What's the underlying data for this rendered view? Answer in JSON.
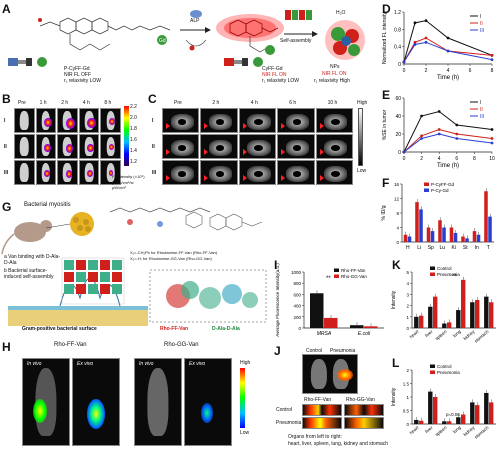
{
  "labels": {
    "A": "A",
    "B": "B",
    "C": "C",
    "D": "D",
    "E": "E",
    "F": "F",
    "G": "G",
    "H": "H",
    "I": "I",
    "J": "J",
    "K": "K",
    "L": "L"
  },
  "panelA": {
    "alp": "ALP",
    "self_assembly": "Self-assembly",
    "water": "H₂O",
    "probe1_name": "P-CyFF-Gd",
    "probe1_fl": "NIR FL OFF",
    "probe1_r": "r₁ relaxivity LOW",
    "probe2_name": "CyFF-Gd",
    "probe2_fl": "NIR FL ON",
    "probe2_r": "r₁ relaxivity LOW",
    "probe3_name": "NPs",
    "probe3_fl": "NIR FL ON",
    "probe3_r": "r₁ relaxivity High"
  },
  "panelB": {
    "cols": [
      "Pre",
      "1 h",
      "2 h",
      "4 h",
      "8 h"
    ],
    "rows": [
      "I",
      "II",
      "III"
    ],
    "scale_ticks": [
      "2.2",
      "2.0",
      "1.8",
      "1.6",
      "1.4",
      "1.2"
    ],
    "scale_unit": "FL intensity (×10⁹)",
    "scale_unit2": "p/sec/cm²/sr μW/cm²"
  },
  "panelC": {
    "cols": [
      "Pre",
      "2 h",
      "4 h",
      "6 h",
      "10 h"
    ],
    "rows": [
      "I",
      "II",
      "III"
    ],
    "high": "High",
    "low": "Low"
  },
  "panelD": {
    "ylabel": "Normalized FL intensity",
    "xlabel": "Time (h)",
    "legend": [
      "I",
      "II",
      "III"
    ]
  },
  "panelE": {
    "ylabel": "%SE in tumor",
    "xlabel": "Time (h)",
    "legend": [
      "I",
      "II",
      "III"
    ]
  },
  "panelF": {
    "ylabel": "% ID/g",
    "legend": [
      "P-CyFF-Gd",
      "P-Cy-Gd"
    ]
  },
  "panelG": {
    "title": "Bacterial myositis",
    "step_a": "a  Van binding with D-Ala-D-Ala",
    "step_b": "b  Bacterial surface-induced self-assembly",
    "surface": "Gram-positive bacterial surface",
    "rho_ff": "Rho-FF-Van",
    "dala": "D-Ala-D-Ala",
    "legend1": "X₁=-CH₂Ph for Rhodamine-FF-Van (Rho-FF-Van)",
    "legend2": "X₂=-H, for Rhodamine-GG-Van (Rho-GG-Van)"
  },
  "panelH": {
    "group1": "Rho-FF-Van",
    "group2": "Rho-GG-Van",
    "in_vivo": "In vivo",
    "ex_vivo": "Ex vivo",
    "high": "High",
    "low": "Low"
  },
  "panelI": {
    "ylabel": "Average Fluorescence Intensity(a.u.)",
    "legend": [
      "Rho-FF-Van",
      "Rho-GG-Van"
    ],
    "groups": [
      "MRSA",
      "E.coli"
    ],
    "sig": "**"
  },
  "panelJ": {
    "top_control": "Control",
    "top_pneumonia": "Pneumonia",
    "rho_ff": "Rho-FF-Van",
    "rho_gg": "Rho-GG-Van",
    "row_control": "Control",
    "row_pneumonia": "Pneumonia",
    "caption1": "Organs from left to right:",
    "caption2": "heart, liver, spleen, lung, kidney and stomach"
  },
  "panelK": {
    "ylabel": "Intensity",
    "legend": [
      "Control",
      "Pneumonia"
    ],
    "categories": [
      "heart",
      "liver",
      "spleen",
      "lung",
      "kidney",
      "stomach"
    ],
    "sig": "**"
  },
  "panelL": {
    "ylabel": "Intensity",
    "legend": [
      "Control",
      "Pneumonia"
    ],
    "categories": [
      "heart",
      "liver",
      "spleen",
      "lung",
      "kidney",
      "stomach"
    ],
    "pval": "p=0.06"
  },
  "chart_data": [
    {
      "type": "line",
      "id": "D",
      "xlabel": "Time (h)",
      "ylabel": "Normalized FL intensity",
      "x": [
        0,
        1,
        2,
        4,
        8
      ],
      "xlim": [
        0,
        8
      ],
      "ylim": [
        0,
        1.2
      ],
      "xticks": [
        0,
        2,
        4,
        6,
        8
      ],
      "yticks": [
        0.0,
        0.4,
        0.8,
        1.2
      ],
      "series": [
        {
          "name": "I",
          "color": "#111111",
          "values": [
            0.05,
            0.95,
            1.0,
            0.6,
            0.2
          ]
        },
        {
          "name": "II",
          "color": "#d0201b",
          "values": [
            0.05,
            0.5,
            0.6,
            0.3,
            0.2
          ]
        },
        {
          "name": "III",
          "color": "#2a3fd0",
          "values": [
            0.05,
            0.45,
            0.5,
            0.3,
            0.1
          ]
        }
      ]
    },
    {
      "type": "line",
      "id": "E",
      "xlabel": "Time (h)",
      "ylabel": "%SE in tumor",
      "x": [
        0,
        2,
        4,
        6,
        10
      ],
      "xlim": [
        0,
        10
      ],
      "ylim": [
        0,
        60
      ],
      "xticks": [
        0,
        2,
        4,
        6,
        8,
        10
      ],
      "yticks": [
        0,
        20,
        40,
        60
      ],
      "series": [
        {
          "name": "I",
          "color": "#111111",
          "values": [
            0,
            40,
            45,
            30,
            25
          ]
        },
        {
          "name": "II",
          "color": "#d0201b",
          "values": [
            0,
            18,
            25,
            20,
            15
          ]
        },
        {
          "name": "III",
          "color": "#2a3fd0",
          "values": [
            0,
            15,
            20,
            15,
            10
          ]
        }
      ]
    },
    {
      "type": "bar",
      "id": "F",
      "ylabel": "% ID/g",
      "categories": [
        "H",
        "Li",
        "Sp",
        "Lu",
        "Ki",
        "St",
        "In",
        "T"
      ],
      "ylim": [
        0,
        16
      ],
      "yticks": [
        0,
        4,
        8,
        12,
        16
      ],
      "series": [
        {
          "name": "P-CyFF-Gd",
          "color": "#d0201b",
          "values": [
            2,
            11,
            4,
            6,
            4,
            1.5,
            3,
            14
          ]
        },
        {
          "name": "P-Cy-Gd",
          "color": "#2a3fd0",
          "values": [
            1.5,
            9,
            3,
            4,
            2.5,
            1,
            2,
            7
          ]
        }
      ]
    },
    {
      "type": "bar",
      "id": "I",
      "ylabel": "Average Fluorescence Intensity(a.u.)",
      "categories": [
        "MRSA",
        "E.coli"
      ],
      "ylim": [
        0,
        1000
      ],
      "yticks": [
        0,
        200,
        400,
        600,
        800,
        1000
      ],
      "series": [
        {
          "name": "Rho-FF-Van",
          "color": "#111111",
          "values": [
            620,
            50
          ]
        },
        {
          "name": "Rho-GG-Van",
          "color": "#d0201b",
          "values": [
            180,
            30
          ]
        }
      ]
    },
    {
      "type": "bar",
      "id": "K",
      "ylabel": "Intensity",
      "categories": [
        "heart",
        "liver",
        "spleen",
        "lung",
        "kidney",
        "stomach"
      ],
      "ylim": [
        0,
        5
      ],
      "yticks": [
        0,
        1,
        2,
        3,
        4,
        5
      ],
      "series": [
        {
          "name": "Control",
          "color": "#111111",
          "values": [
            1.0,
            1.9,
            0.4,
            1.6,
            2.3,
            2.8
          ]
        },
        {
          "name": "Pneumonia",
          "color": "#d0201b",
          "values": [
            1.1,
            2.8,
            0.5,
            4.3,
            2.5,
            2.3
          ]
        }
      ]
    },
    {
      "type": "bar",
      "id": "L",
      "ylabel": "Intensity",
      "categories": [
        "heart",
        "liver",
        "spleen",
        "lung",
        "kidney",
        "stomach"
      ],
      "ylim": [
        0,
        2
      ],
      "yticks": [
        0.0,
        0.5,
        1.0,
        1.5,
        2.0
      ],
      "series": [
        {
          "name": "Control",
          "color": "#111111",
          "values": [
            0.15,
            1.2,
            0.1,
            0.25,
            0.8,
            1.15
          ]
        },
        {
          "name": "Pneumonia",
          "color": "#d0201b",
          "values": [
            0.12,
            1.0,
            0.1,
            0.35,
            0.7,
            0.8
          ]
        }
      ]
    }
  ]
}
